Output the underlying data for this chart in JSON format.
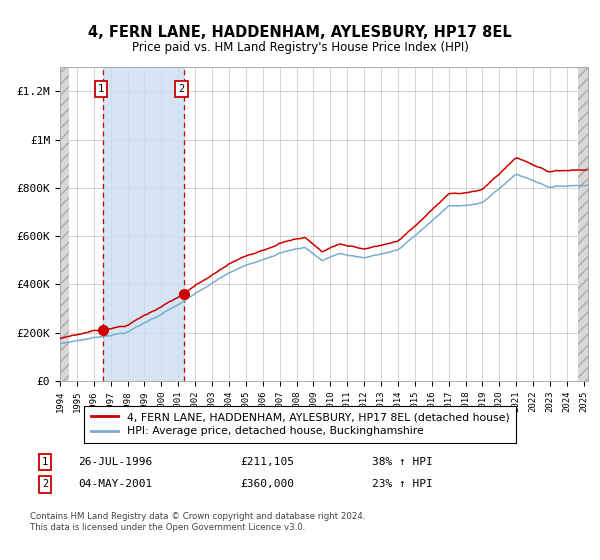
{
  "title": "4, FERN LANE, HADDENHAM, AYLESBURY, HP17 8EL",
  "subtitle": "Price paid vs. HM Land Registry's House Price Index (HPI)",
  "legend_line1": "4, FERN LANE, HADDENHAM, AYLESBURY, HP17 8EL (detached house)",
  "legend_line2": "HPI: Average price, detached house, Buckinghamshire",
  "annotation1": {
    "num": "1",
    "date": "26-JUL-1996",
    "price": "£211,105",
    "pct": "38% ↑ HPI"
  },
  "annotation2": {
    "num": "2",
    "date": "04-MAY-2001",
    "price": "£360,000",
    "pct": "23% ↑ HPI"
  },
  "footnote": "Contains HM Land Registry data © Crown copyright and database right 2024.\nThis data is licensed under the Open Government Licence v3.0.",
  "red_color": "#cc0000",
  "blue_color": "#7aadcc",
  "sale1_year": 1996.57,
  "sale1_price": 211105,
  "sale2_year": 2001.34,
  "sale2_price": 360000,
  "ylim_max": 1300000,
  "hpi_base_price": 153000
}
